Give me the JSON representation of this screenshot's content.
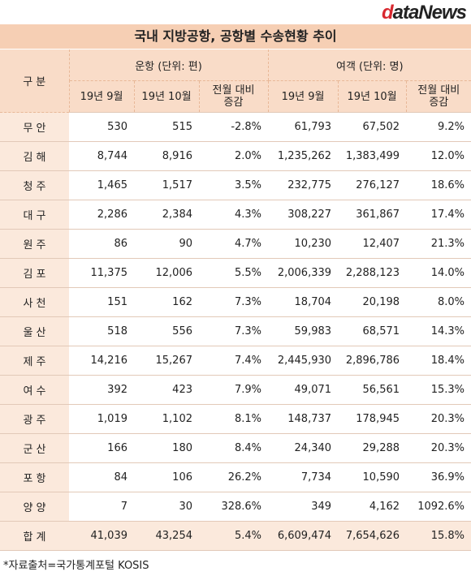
{
  "logo": "dataNews",
  "title": "국내 지방공항, 공항별 수송현황 추이",
  "table": {
    "header": {
      "category": "구 분",
      "group1": "운항 (단위: 편)",
      "group2": "여객 (단위: 명)",
      "sub": [
        "19년 9월",
        "19년 10월",
        "전월 대비\n증감",
        "19년 9월",
        "19년 10월",
        "전월 대비\n증감"
      ]
    },
    "rows": [
      [
        "무 안",
        "530",
        "515",
        "-2.8%",
        "61,793",
        "67,502",
        "9.2%"
      ],
      [
        "김 해",
        "8,744",
        "8,916",
        "2.0%",
        "1,235,262",
        "1,383,499",
        "12.0%"
      ],
      [
        "청 주",
        "1,465",
        "1,517",
        "3.5%",
        "232,775",
        "276,127",
        "18.6%"
      ],
      [
        "대 구",
        "2,286",
        "2,384",
        "4.3%",
        "308,227",
        "361,867",
        "17.4%"
      ],
      [
        "원 주",
        "86",
        "90",
        "4.7%",
        "10,230",
        "12,407",
        "21.3%"
      ],
      [
        "김 포",
        "11,375",
        "12,006",
        "5.5%",
        "2,006,339",
        "2,288,123",
        "14.0%"
      ],
      [
        "사 천",
        "151",
        "162",
        "7.3%",
        "18,704",
        "20,198",
        "8.0%"
      ],
      [
        "울 산",
        "518",
        "556",
        "7.3%",
        "59,983",
        "68,571",
        "14.3%"
      ],
      [
        "제 주",
        "14,216",
        "15,267",
        "7.4%",
        "2,445,930",
        "2,896,786",
        "18.4%"
      ],
      [
        "여 수",
        "392",
        "423",
        "7.9%",
        "49,071",
        "56,561",
        "15.3%"
      ],
      [
        "광 주",
        "1,019",
        "1,102",
        "8.1%",
        "148,737",
        "178,945",
        "20.3%"
      ],
      [
        "군 산",
        "166",
        "180",
        "8.4%",
        "24,340",
        "29,288",
        "20.3%"
      ],
      [
        "포 항",
        "84",
        "106",
        "26.2%",
        "7,734",
        "10,590",
        "36.9%"
      ],
      [
        "양 양",
        "7",
        "30",
        "328.6%",
        "349",
        "4,162",
        "1092.6%"
      ],
      [
        "합 계",
        "41,039",
        "43,254",
        "5.4%",
        "6,609,474",
        "7,654,626",
        "15.8%"
      ]
    ]
  },
  "source": "*자료출처=국가통계포털 KOSIS"
}
